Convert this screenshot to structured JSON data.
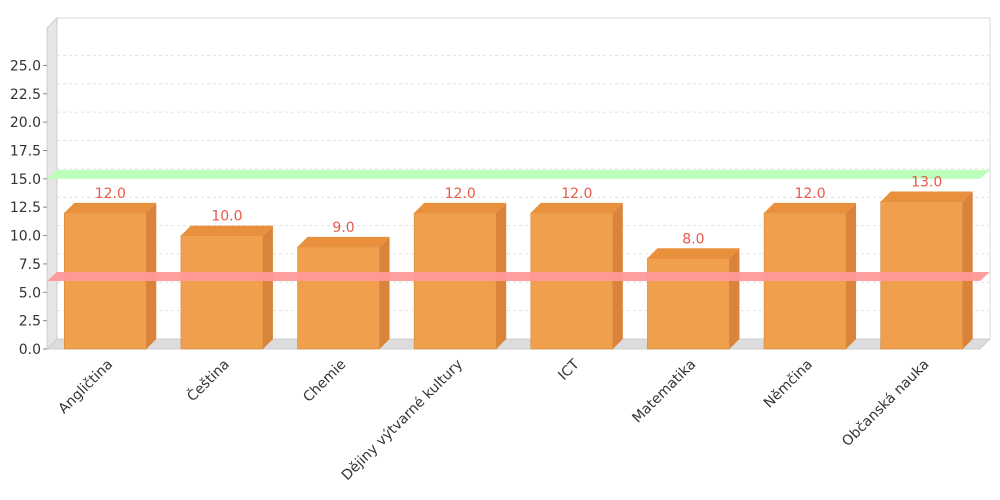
{
  "chart_data": {
    "type": "bar",
    "title": "",
    "xlabel": "",
    "ylabel": "",
    "categories": [
      "Angličtina",
      "Čeština",
      "Chemie",
      "Dějiny výtvarné kultury",
      "ICT",
      "Matematika",
      "Němčina",
      "Občanská nauka"
    ],
    "values": [
      12.0,
      10.0,
      9.0,
      12.0,
      12.0,
      8.0,
      12.0,
      13.0
    ],
    "value_labels": [
      "12.0",
      "10.0",
      "9.0",
      "12.0",
      "12.0",
      "8.0",
      "12.0",
      "13.0"
    ],
    "yticks": [
      "0.0",
      "2.5",
      "5.0",
      "7.5",
      "10.0",
      "12.5",
      "15.0",
      "17.5",
      "20.0",
      "22.5",
      "25.0"
    ],
    "ylim": [
      0,
      28.3
    ],
    "grid": true,
    "legend": "none",
    "reference_lines": [
      {
        "value": 15.0,
        "color": "#b8ffb8"
      },
      {
        "value": 6.0,
        "color": "#ff9999"
      }
    ],
    "colors": {
      "bar": "#f0a04c",
      "bar_top": "#e8903c",
      "bar_side": "#d9843a",
      "value_label": "#e8584a"
    }
  }
}
